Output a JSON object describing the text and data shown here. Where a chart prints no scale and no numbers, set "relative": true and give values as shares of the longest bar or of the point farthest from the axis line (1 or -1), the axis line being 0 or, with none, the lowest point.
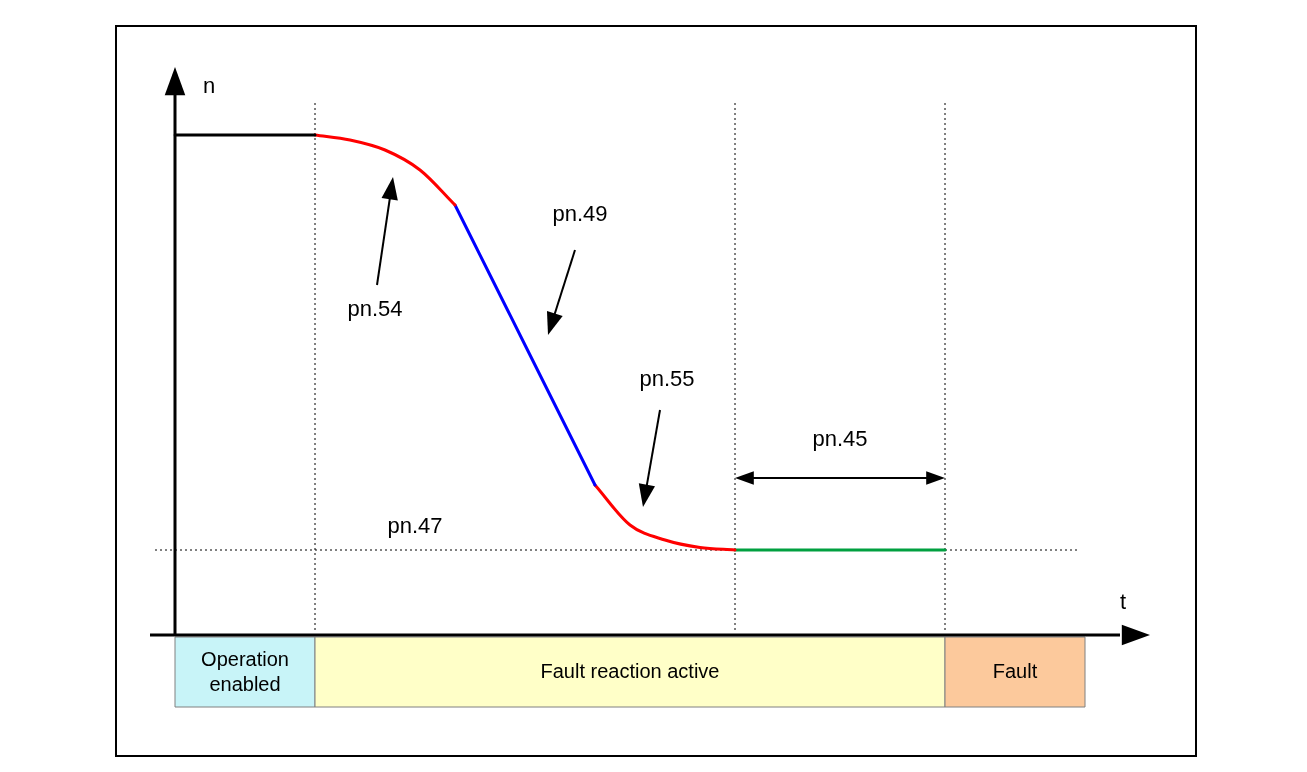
{
  "chart_data": {
    "type": "line",
    "relative": true,
    "xlabel": "t",
    "ylabel": "n",
    "legend": false,
    "marker": "none",
    "categories": [
      null,
      null,
      null,
      null,
      null,
      null,
      null,
      null,
      null,
      null,
      null,
      null,
      null,
      null,
      null,
      null,
      null,
      null,
      null,
      null,
      null,
      null,
      null,
      null,
      null,
      null,
      null
    ],
    "series": [
      {
        "color": "#000000",
        "values": [
          1,
          1,
          1,
          1,
          1,
          null,
          null,
          null,
          null,
          null,
          null,
          null,
          null,
          null,
          null,
          null,
          null,
          null,
          null,
          null,
          null,
          null,
          null,
          null,
          null,
          null,
          null
        ]
      },
      {
        "color": "#ff0000",
        "values": [
          null,
          null,
          null,
          null,
          1,
          0.99,
          0.97,
          0.93,
          0.86,
          null,
          null,
          null,
          null,
          null,
          null,
          null,
          null,
          null,
          null,
          null,
          null,
          null,
          null,
          null,
          null,
          null,
          null
        ]
      },
      {
        "color": "#0000ff",
        "values": [
          null,
          null,
          null,
          null,
          null,
          null,
          null,
          null,
          0.86,
          0.72,
          0.58,
          0.44,
          0.3,
          null,
          null,
          null,
          null,
          null,
          null,
          null,
          null,
          null,
          null,
          null,
          null,
          null,
          null
        ]
      },
      {
        "color": "#ff0000",
        "values": [
          null,
          null,
          null,
          null,
          null,
          null,
          null,
          null,
          null,
          null,
          null,
          null,
          0.3,
          0.22,
          0.19,
          0.175,
          0.17,
          null,
          null,
          null,
          null,
          null,
          null,
          null,
          null,
          null,
          null
        ]
      },
      {
        "color": "#00a040",
        "values": [
          null,
          null,
          null,
          null,
          null,
          null,
          null,
          null,
          null,
          null,
          null,
          null,
          null,
          null,
          null,
          null,
          0.17,
          0.17,
          0.17,
          0.17,
          0.17,
          0.17,
          0.17,
          null,
          null,
          null,
          null
        ]
      }
    ],
    "ref_lines": [
      {
        "axis": "y",
        "value": 0.17,
        "label": "pn.47",
        "line_style": "dotted"
      }
    ],
    "annotations": [
      "pn.54",
      "pn.49",
      "pn.55",
      "pn.45",
      "Operation enabled",
      "Fault reaction active",
      "Fault"
    ]
  }
}
